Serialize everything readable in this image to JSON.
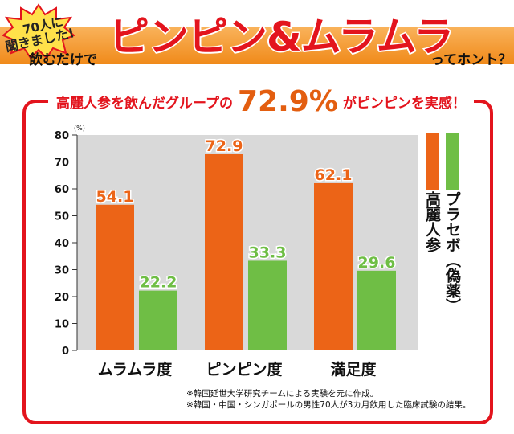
{
  "banner": {
    "burst_line1": "70人に",
    "burst_line2": "聞きました!",
    "lead": "飲むだけで",
    "headline": "ピンピン&ムラムラ",
    "tail": "ってホント？"
  },
  "subtitle": {
    "prefix": "高麗人参を飲んだグループの",
    "value": "72.9%",
    "suffix": "がピンピンを実感！"
  },
  "legend": {
    "ginseng": "高麗人参",
    "placebo": "プラセボ（偽薬）"
  },
  "notes": [
    "※韓国延世大学研究チームによる実験を元に作成。",
    "※韓国・中国・シンガポールの男性70人が3カ月飲用した臨床試験の結果。"
  ],
  "colors": {
    "ginseng": "#ec6417",
    "placebo": "#6fbe45",
    "plot_bg": "#d9d9d9",
    "frame": "#e3141d"
  },
  "chart_data": {
    "type": "bar",
    "unit_label": "(%)",
    "categories": [
      "ムラムラ度",
      "ピンピン度",
      "満足度"
    ],
    "series": [
      {
        "name": "高麗人参",
        "values": [
          54.1,
          72.9,
          62.1
        ]
      },
      {
        "name": "プラセボ（偽薬）",
        "values": [
          22.2,
          33.3,
          29.6
        ]
      }
    ],
    "value_labels": [
      [
        "54.1",
        "72.9",
        "62.1"
      ],
      [
        "22.2",
        "33.3",
        "29.6"
      ]
    ],
    "ylim": [
      0,
      80
    ],
    "yticks": [
      0,
      10,
      20,
      30,
      40,
      50,
      60,
      70,
      80
    ],
    "ytick_labels": [
      "0",
      "10",
      "20",
      "30",
      "40",
      "50",
      "60",
      "70",
      "80"
    ]
  }
}
